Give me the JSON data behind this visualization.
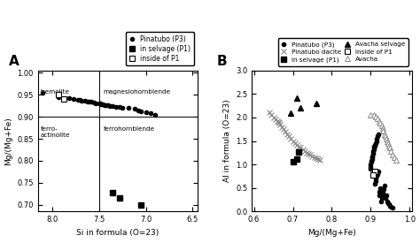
{
  "panel_A": {
    "title": "A",
    "xlabel": "Si in formula (O=23)",
    "ylabel": "Mg/(Mg+Fe)",
    "xlim": [
      8.15,
      6.45
    ],
    "ylim": [
      0.685,
      1.005
    ],
    "xticks": [
      8,
      7.5,
      7,
      6.5
    ],
    "yticks": [
      0.7,
      0.75,
      0.8,
      0.85,
      0.9,
      0.95,
      1.0
    ],
    "divider_x": 7.5,
    "divider_y": 0.9,
    "pinatubo_P3_si": [
      8.1,
      7.93,
      7.82,
      7.77,
      7.72,
      7.7,
      7.68,
      7.65,
      7.62,
      7.6,
      7.58,
      7.55,
      7.53,
      7.5,
      7.49,
      7.48,
      7.46,
      7.44,
      7.42,
      7.4,
      7.38,
      7.35,
      7.32,
      7.28,
      7.25,
      7.18,
      7.12,
      7.08,
      7.05,
      7.0,
      6.95,
      6.9
    ],
    "pinatubo_P3_mg": [
      0.954,
      0.945,
      0.942,
      0.94,
      0.938,
      0.938,
      0.937,
      0.936,
      0.935,
      0.934,
      0.934,
      0.932,
      0.931,
      0.93,
      0.93,
      0.929,
      0.928,
      0.927,
      0.926,
      0.926,
      0.925,
      0.924,
      0.923,
      0.922,
      0.921,
      0.92,
      0.918,
      0.915,
      0.912,
      0.91,
      0.908,
      0.905
    ],
    "selvage_si": [
      7.35,
      7.28,
      7.05
    ],
    "selvage_mg": [
      0.728,
      0.715,
      0.7
    ],
    "inside_si": [
      7.93,
      7.87
    ],
    "inside_mg": [
      0.95,
      0.94
    ]
  },
  "panel_B": {
    "title": "B",
    "xlabel": "Mg/(Mg+Fe)",
    "ylabel": "Al in formula (O=23)",
    "xlim": [
      0.595,
      1.005
    ],
    "ylim": [
      0,
      3.0
    ],
    "xticks": [
      0.6,
      0.7,
      0.8,
      0.9,
      1.0
    ],
    "yticks": [
      0,
      0.5,
      1.0,
      1.5,
      2.0,
      2.5,
      3.0
    ],
    "pin_P3_mg": [
      0.92,
      0.918,
      0.916,
      0.914,
      0.912,
      0.91,
      0.91,
      0.909,
      0.908,
      0.908,
      0.907,
      0.906,
      0.905,
      0.904,
      0.904,
      0.903,
      0.902,
      0.901,
      0.9,
      0.899,
      0.898,
      0.92,
      0.918,
      0.915,
      0.913,
      0.912,
      0.91,
      0.924,
      0.922,
      0.921,
      0.935,
      0.933,
      0.932,
      0.931,
      0.93,
      0.928,
      0.926,
      0.94,
      0.938,
      0.942,
      0.945,
      0.948,
      0.95,
      0.952,
      0.955
    ],
    "pin_P3_al": [
      1.65,
      1.6,
      1.55,
      1.5,
      1.45,
      1.42,
      1.4,
      1.38,
      1.35,
      1.32,
      1.28,
      1.25,
      1.22,
      1.18,
      1.15,
      1.12,
      1.08,
      1.05,
      1.0,
      0.95,
      0.9,
      0.85,
      0.8,
      0.75,
      0.7,
      0.65,
      0.58,
      0.5,
      0.42,
      0.35,
      0.55,
      0.48,
      0.42,
      0.38,
      0.32,
      0.28,
      0.22,
      0.35,
      0.28,
      0.22,
      0.18,
      0.15,
      0.12,
      0.1,
      0.08
    ],
    "selvage_mg": [
      0.715,
      0.7,
      0.71
    ],
    "selvage_al": [
      1.27,
      1.05,
      1.12
    ],
    "inside_mg": [
      0.91,
      0.905
    ],
    "inside_al": [
      0.85,
      0.78
    ],
    "dacite_mg": [
      0.64,
      0.645,
      0.65,
      0.655,
      0.66,
      0.663,
      0.665,
      0.668,
      0.672,
      0.676,
      0.68,
      0.685,
      0.69,
      0.695,
      0.7,
      0.705,
      0.71,
      0.715,
      0.72,
      0.725,
      0.73,
      0.735,
      0.74,
      0.745,
      0.75,
      0.755,
      0.76,
      0.765,
      0.77
    ],
    "dacite_al": [
      2.12,
      2.05,
      2.0,
      1.97,
      1.93,
      1.9,
      1.88,
      1.85,
      1.8,
      1.75,
      1.7,
      1.65,
      1.6,
      1.55,
      1.5,
      1.45,
      1.42,
      1.38,
      1.35,
      1.32,
      1.28,
      1.25,
      1.22,
      1.2,
      1.18,
      1.16,
      1.14,
      1.12,
      1.1
    ],
    "av_sel_mg": [
      0.695,
      0.71,
      0.72,
      0.76
    ],
    "av_sel_al": [
      2.1,
      2.42,
      2.2,
      2.3
    ],
    "avacha_mg": [
      0.9,
      0.908,
      0.912,
      0.918,
      0.922,
      0.925,
      0.928,
      0.93,
      0.932,
      0.935,
      0.938,
      0.94,
      0.942,
      0.945,
      0.948,
      0.95,
      0.952,
      0.955,
      0.96,
      0.965
    ],
    "avacha_al": [
      2.05,
      2.05,
      2.02,
      1.98,
      1.92,
      1.88,
      1.82,
      1.78,
      1.72,
      1.65,
      1.6,
      1.55,
      1.5,
      1.45,
      1.4,
      1.35,
      1.28,
      1.2,
      1.15,
      1.1
    ]
  }
}
